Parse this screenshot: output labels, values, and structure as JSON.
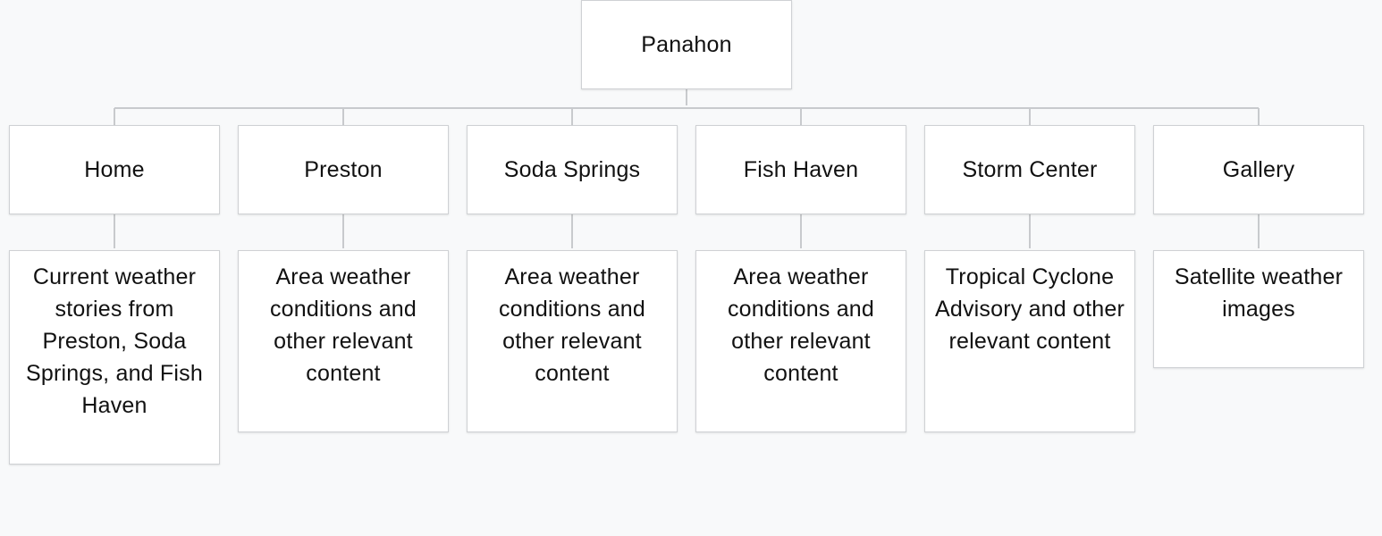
{
  "root": {
    "label": "Panahon"
  },
  "pages": [
    {
      "label": "Home",
      "description": "Current weather stories from Preston, Soda Springs, and Fish Haven"
    },
    {
      "label": "Preston",
      "description": "Area weather conditions and other relevant content"
    },
    {
      "label": "Soda Springs",
      "description": "Area weather conditions and other relevant content"
    },
    {
      "label": "Fish Haven",
      "description": "Area weather conditions and other relevant content"
    },
    {
      "label": "Storm Center",
      "description": "Tropical Cyclone Advisory and other relevant content"
    },
    {
      "label": "Gallery",
      "description": "Satellite weather images"
    }
  ],
  "colors": {
    "background": "#f8f9fa",
    "node_fill": "#ffffff",
    "node_border": "#cfd1d4",
    "connector": "#c8cacd",
    "text": "#111111"
  }
}
